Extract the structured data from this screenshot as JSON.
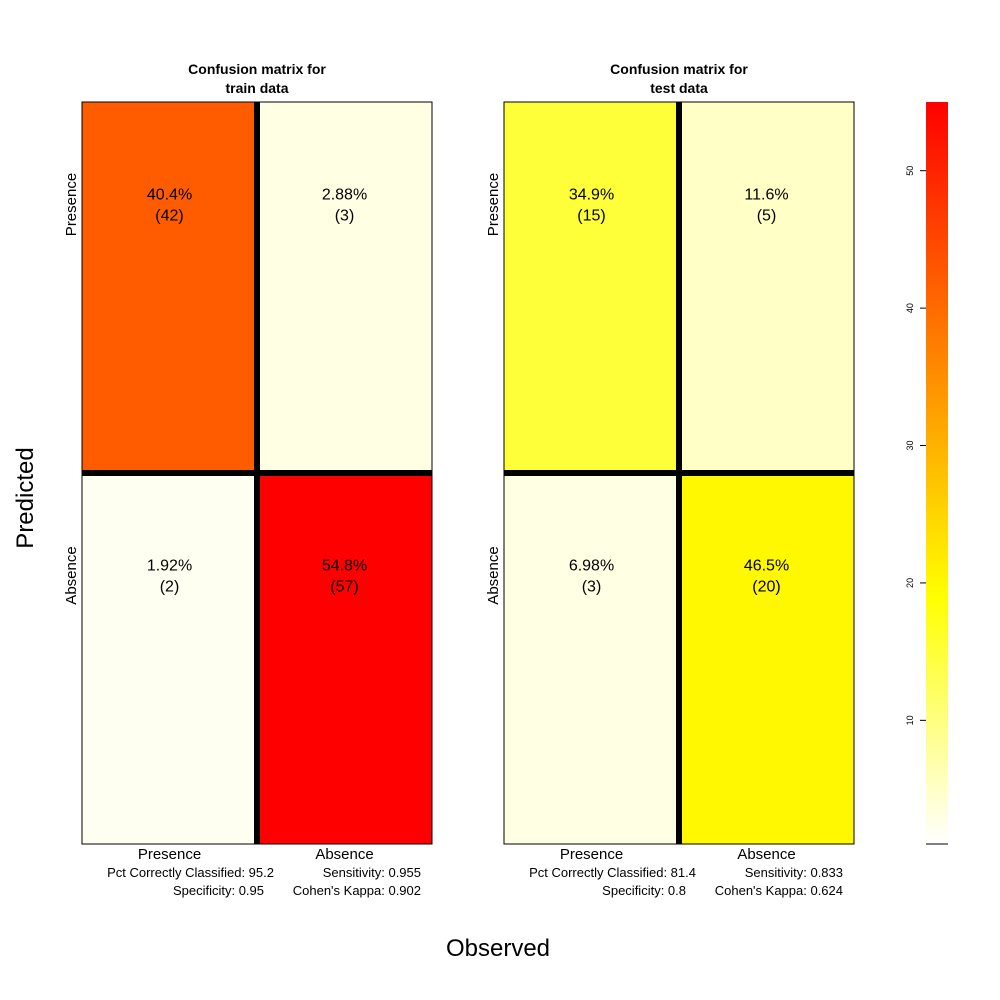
{
  "figure": {
    "ylabel": "Predicted",
    "xlabel": "Observed"
  },
  "chart_data": {
    "type": "heatmap",
    "matrices": [
      {
        "title_line1": "Confusion matrix for",
        "title_line2": "train data",
        "predicted_labels": [
          "Presence",
          "Absence"
        ],
        "observed_labels": [
          "Presence",
          "Absence"
        ],
        "cells": [
          [
            {
              "pct": "40.4%",
              "count": 42
            },
            {
              "pct": "2.88%",
              "count": 3
            }
          ],
          [
            {
              "pct": "1.92%",
              "count": 2
            },
            {
              "pct": "54.8%",
              "count": 57
            }
          ]
        ],
        "stats": {
          "pcc": "Pct Correctly Classified: 95.2",
          "sensitivity": "Sensitivity: 0.955",
          "specificity": "Specificity:   0.95",
          "kappa": "Cohen's Kappa: 0.902"
        }
      },
      {
        "title_line1": "Confusion matrix for",
        "title_line2": "test data",
        "predicted_labels": [
          "Presence",
          "Absence"
        ],
        "observed_labels": [
          "Presence",
          "Absence"
        ],
        "cells": [
          [
            {
              "pct": "34.9%",
              "count": 15
            },
            {
              "pct": "11.6%",
              "count": 5
            }
          ],
          [
            {
              "pct": "6.98%",
              "count": 3
            },
            {
              "pct": "46.5%",
              "count": 20
            }
          ]
        ],
        "stats": {
          "pcc": "Pct Correctly Classified: 81.4",
          "sensitivity": "Sensitivity: 0.833",
          "specificity": "Specificity:   0.8",
          "kappa": "Cohen's Kappa: 0.624"
        }
      }
    ],
    "colorbar": {
      "min": 1,
      "max": 55,
      "ticks": [
        10,
        20,
        30,
        40,
        50
      ],
      "colors": [
        "#ffffff",
        "#ffff00",
        "#ff8000",
        "#ff0000"
      ]
    }
  }
}
